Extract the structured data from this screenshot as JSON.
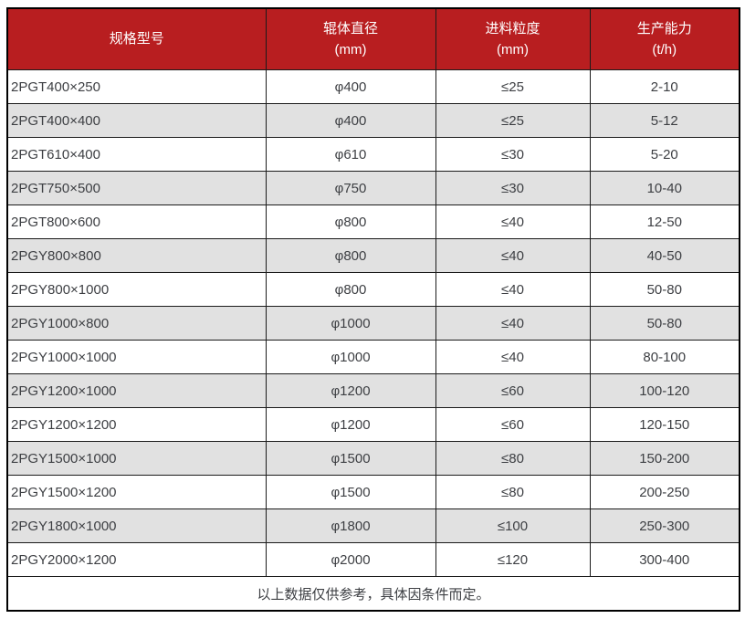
{
  "table": {
    "columns": [
      {
        "label": "规格型号",
        "unit": ""
      },
      {
        "label": "辊体直径",
        "unit": "(mm)"
      },
      {
        "label": "进料粒度",
        "unit": "(mm)"
      },
      {
        "label": "生产能力",
        "unit": "(t/h)"
      }
    ],
    "rows": [
      {
        "model": "2PGT400×250",
        "roller_diameter": "φ400",
        "feed_size": "≤25",
        "capacity": "2-10"
      },
      {
        "model": "2PGT400×400",
        "roller_diameter": "φ400",
        "feed_size": "≤25",
        "capacity": "5-12"
      },
      {
        "model": "2PGT610×400",
        "roller_diameter": "φ610",
        "feed_size": "≤30",
        "capacity": "5-20"
      },
      {
        "model": "2PGT750×500",
        "roller_diameter": "φ750",
        "feed_size": "≤30",
        "capacity": "10-40"
      },
      {
        "model": "2PGT800×600",
        "roller_diameter": "φ800",
        "feed_size": "≤40",
        "capacity": "12-50"
      },
      {
        "model": "2PGY800×800",
        "roller_diameter": "φ800",
        "feed_size": "≤40",
        "capacity": "40-50"
      },
      {
        "model": "2PGY800×1000",
        "roller_diameter": "φ800",
        "feed_size": "≤40",
        "capacity": "50-80"
      },
      {
        "model": "2PGY1000×800",
        "roller_diameter": "φ1000",
        "feed_size": "≤40",
        "capacity": "50-80"
      },
      {
        "model": "2PGY1000×1000",
        "roller_diameter": "φ1000",
        "feed_size": "≤40",
        "capacity": "80-100"
      },
      {
        "model": "2PGY1200×1000",
        "roller_diameter": "φ1200",
        "feed_size": "≤60",
        "capacity": "100-120"
      },
      {
        "model": "2PGY1200×1200",
        "roller_diameter": "φ1200",
        "feed_size": "≤60",
        "capacity": "120-150"
      },
      {
        "model": "2PGY1500×1000",
        "roller_diameter": "φ1500",
        "feed_size": "≤80",
        "capacity": "150-200"
      },
      {
        "model": "2PGY1500×1200",
        "roller_diameter": "φ1500",
        "feed_size": "≤80",
        "capacity": "200-250"
      },
      {
        "model": "2PGY1800×1000",
        "roller_diameter": "φ1800",
        "feed_size": "≤100",
        "capacity": "250-300"
      },
      {
        "model": "2PGY2000×1200",
        "roller_diameter": "φ2000",
        "feed_size": "≤120",
        "capacity": "300-400"
      }
    ],
    "footer_note": "以上数据仅供参考，具体因条件而定。"
  },
  "colors": {
    "header_bg": "#b81e20",
    "header_text": "#ffffff",
    "stripe_bg": "#e1e1e1",
    "row_bg": "#ffffff",
    "cell_text": "#3d3f43",
    "border_inner": "#1b1b1b",
    "border_outer": "#000000"
  }
}
